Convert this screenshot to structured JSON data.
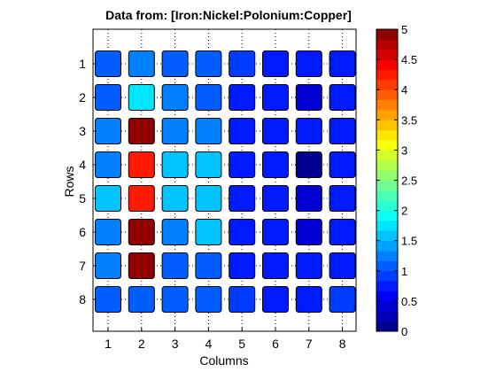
{
  "chart_data": {
    "type": "heatmap",
    "title": "Data from: [Iron:Nickel:Polonium:Copper]",
    "xlabel": "Columns",
    "ylabel": "Rows",
    "x_ticks": [
      "1",
      "2",
      "3",
      "4",
      "5",
      "6",
      "7",
      "8"
    ],
    "y_ticks": [
      "1",
      "2",
      "3",
      "4",
      "5",
      "6",
      "7",
      "8"
    ],
    "colorbar": {
      "min": 0,
      "max": 5,
      "ticks": [
        0,
        0.5,
        1,
        1.5,
        2,
        2.5,
        3,
        3.5,
        4,
        4.5,
        5
      ],
      "tick_labels": [
        "0",
        "0.5",
        "1",
        "1.5",
        "2",
        "2.5",
        "3",
        "3.5",
        "4",
        "4.5",
        "5"
      ],
      "colormap": "jet",
      "levels": 30
    },
    "values": [
      [
        1.1,
        1.3,
        1.1,
        1.1,
        0.9,
        0.7,
        0.7,
        0.7
      ],
      [
        1.1,
        1.8,
        1.3,
        1.1,
        0.7,
        0.7,
        0.4,
        0.7
      ],
      [
        1.3,
        5.0,
        1.3,
        1.3,
        0.7,
        0.7,
        0.7,
        0.7
      ],
      [
        1.3,
        4.2,
        1.5,
        1.5,
        0.7,
        0.7,
        0.1,
        0.7
      ],
      [
        1.5,
        4.2,
        1.5,
        1.5,
        0.7,
        0.7,
        0.4,
        0.7
      ],
      [
        1.3,
        5.0,
        1.3,
        1.5,
        0.7,
        0.7,
        0.4,
        0.7
      ],
      [
        1.3,
        5.0,
        1.1,
        1.1,
        0.7,
        0.7,
        0.7,
        0.7
      ],
      [
        1.1,
        1.1,
        1.1,
        1.1,
        0.9,
        0.7,
        0.7,
        0.9
      ]
    ]
  }
}
